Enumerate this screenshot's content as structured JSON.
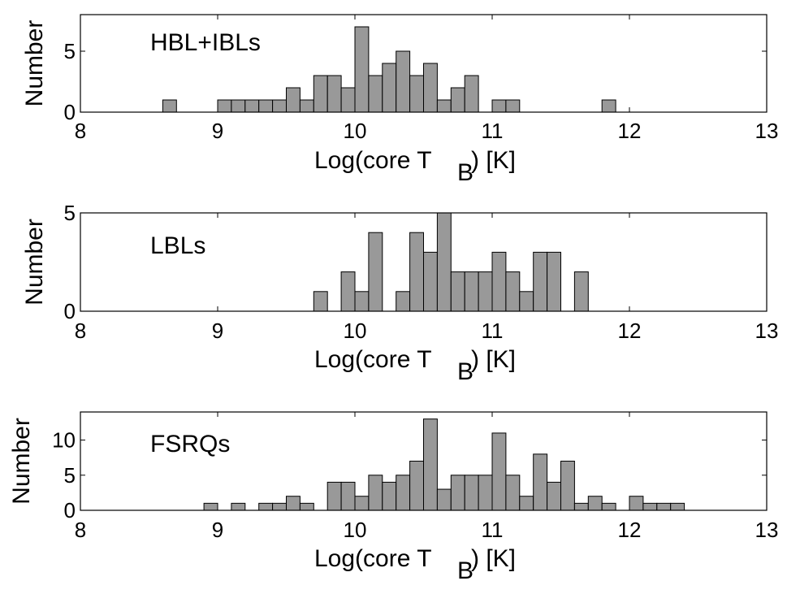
{
  "chart_data": [
    {
      "type": "bar",
      "title": "HBL+IBLs",
      "xlabel": "Log(core T",
      "xlabel_sub": "B",
      "xlabel_tail": ") [K]",
      "ylabel": "Number",
      "xlim": [
        8,
        13
      ],
      "ylim": [
        0,
        8
      ],
      "xticks": [
        "8",
        "9",
        "10",
        "11",
        "12",
        "13"
      ],
      "yticks": [
        {
          "value": 0,
          "label": "0"
        },
        {
          "value": 5,
          "label": "5"
        }
      ],
      "bin_width": 0.1,
      "bins": [
        {
          "x": 8.65,
          "count": 1
        },
        {
          "x": 9.05,
          "count": 1
        },
        {
          "x": 9.15,
          "count": 1
        },
        {
          "x": 9.25,
          "count": 1
        },
        {
          "x": 9.35,
          "count": 1
        },
        {
          "x": 9.45,
          "count": 1
        },
        {
          "x": 9.55,
          "count": 2
        },
        {
          "x": 9.65,
          "count": 1
        },
        {
          "x": 9.75,
          "count": 3
        },
        {
          "x": 9.85,
          "count": 3
        },
        {
          "x": 9.95,
          "count": 2
        },
        {
          "x": 10.05,
          "count": 7
        },
        {
          "x": 10.15,
          "count": 3
        },
        {
          "x": 10.25,
          "count": 4
        },
        {
          "x": 10.35,
          "count": 5
        },
        {
          "x": 10.45,
          "count": 3
        },
        {
          "x": 10.55,
          "count": 4
        },
        {
          "x": 10.65,
          "count": 1
        },
        {
          "x": 10.75,
          "count": 2
        },
        {
          "x": 10.85,
          "count": 3
        },
        {
          "x": 11.05,
          "count": 1
        },
        {
          "x": 11.15,
          "count": 1
        },
        {
          "x": 11.85,
          "count": 1
        }
      ]
    },
    {
      "type": "bar",
      "title": "LBLs",
      "xlabel": "Log(core T",
      "xlabel_sub": "B",
      "xlabel_tail": ") [K]",
      "ylabel": "Number",
      "xlim": [
        8,
        13
      ],
      "ylim": [
        0,
        5
      ],
      "xticks": [
        "8",
        "9",
        "10",
        "11",
        "12",
        "13"
      ],
      "yticks": [
        {
          "value": 0,
          "label": "0"
        },
        {
          "value": 5,
          "label": "5"
        }
      ],
      "bin_width": 0.1,
      "bins": [
        {
          "x": 9.75,
          "count": 1
        },
        {
          "x": 9.95,
          "count": 2
        },
        {
          "x": 10.05,
          "count": 1
        },
        {
          "x": 10.15,
          "count": 4
        },
        {
          "x": 10.35,
          "count": 1
        },
        {
          "x": 10.45,
          "count": 4
        },
        {
          "x": 10.55,
          "count": 3
        },
        {
          "x": 10.65,
          "count": 5
        },
        {
          "x": 10.75,
          "count": 2
        },
        {
          "x": 10.85,
          "count": 2
        },
        {
          "x": 10.95,
          "count": 2
        },
        {
          "x": 11.05,
          "count": 3
        },
        {
          "x": 11.15,
          "count": 2
        },
        {
          "x": 11.25,
          "count": 1
        },
        {
          "x": 11.35,
          "count": 3
        },
        {
          "x": 11.45,
          "count": 3
        },
        {
          "x": 11.65,
          "count": 2
        }
      ]
    },
    {
      "type": "bar",
      "title": "FSRQs",
      "xlabel": "Log(core T",
      "xlabel_sub": "B",
      "xlabel_tail": ") [K]",
      "ylabel": "Number",
      "xlim": [
        8,
        13
      ],
      "ylim": [
        0,
        14
      ],
      "xticks": [
        "8",
        "9",
        "10",
        "11",
        "12",
        "13"
      ],
      "yticks": [
        {
          "value": 0,
          "label": "0"
        },
        {
          "value": 5,
          "label": "5"
        },
        {
          "value": 10,
          "label": "10"
        }
      ],
      "bin_width": 0.1,
      "bins": [
        {
          "x": 8.95,
          "count": 1
        },
        {
          "x": 9.15,
          "count": 1
        },
        {
          "x": 9.35,
          "count": 1
        },
        {
          "x": 9.45,
          "count": 1
        },
        {
          "x": 9.55,
          "count": 2
        },
        {
          "x": 9.65,
          "count": 1
        },
        {
          "x": 9.85,
          "count": 4
        },
        {
          "x": 9.95,
          "count": 4
        },
        {
          "x": 10.05,
          "count": 2
        },
        {
          "x": 10.15,
          "count": 5
        },
        {
          "x": 10.25,
          "count": 4
        },
        {
          "x": 10.35,
          "count": 5
        },
        {
          "x": 10.45,
          "count": 7
        },
        {
          "x": 10.55,
          "count": 13
        },
        {
          "x": 10.65,
          "count": 3
        },
        {
          "x": 10.75,
          "count": 5
        },
        {
          "x": 10.85,
          "count": 5
        },
        {
          "x": 10.95,
          "count": 5
        },
        {
          "x": 11.05,
          "count": 11
        },
        {
          "x": 11.15,
          "count": 5
        },
        {
          "x": 11.25,
          "count": 2
        },
        {
          "x": 11.35,
          "count": 8
        },
        {
          "x": 11.45,
          "count": 4
        },
        {
          "x": 11.55,
          "count": 7
        },
        {
          "x": 11.65,
          "count": 1
        },
        {
          "x": 11.75,
          "count": 2
        },
        {
          "x": 11.85,
          "count": 1
        },
        {
          "x": 12.05,
          "count": 2
        },
        {
          "x": 12.15,
          "count": 1
        },
        {
          "x": 12.25,
          "count": 1
        },
        {
          "x": 12.35,
          "count": 1
        }
      ]
    }
  ]
}
